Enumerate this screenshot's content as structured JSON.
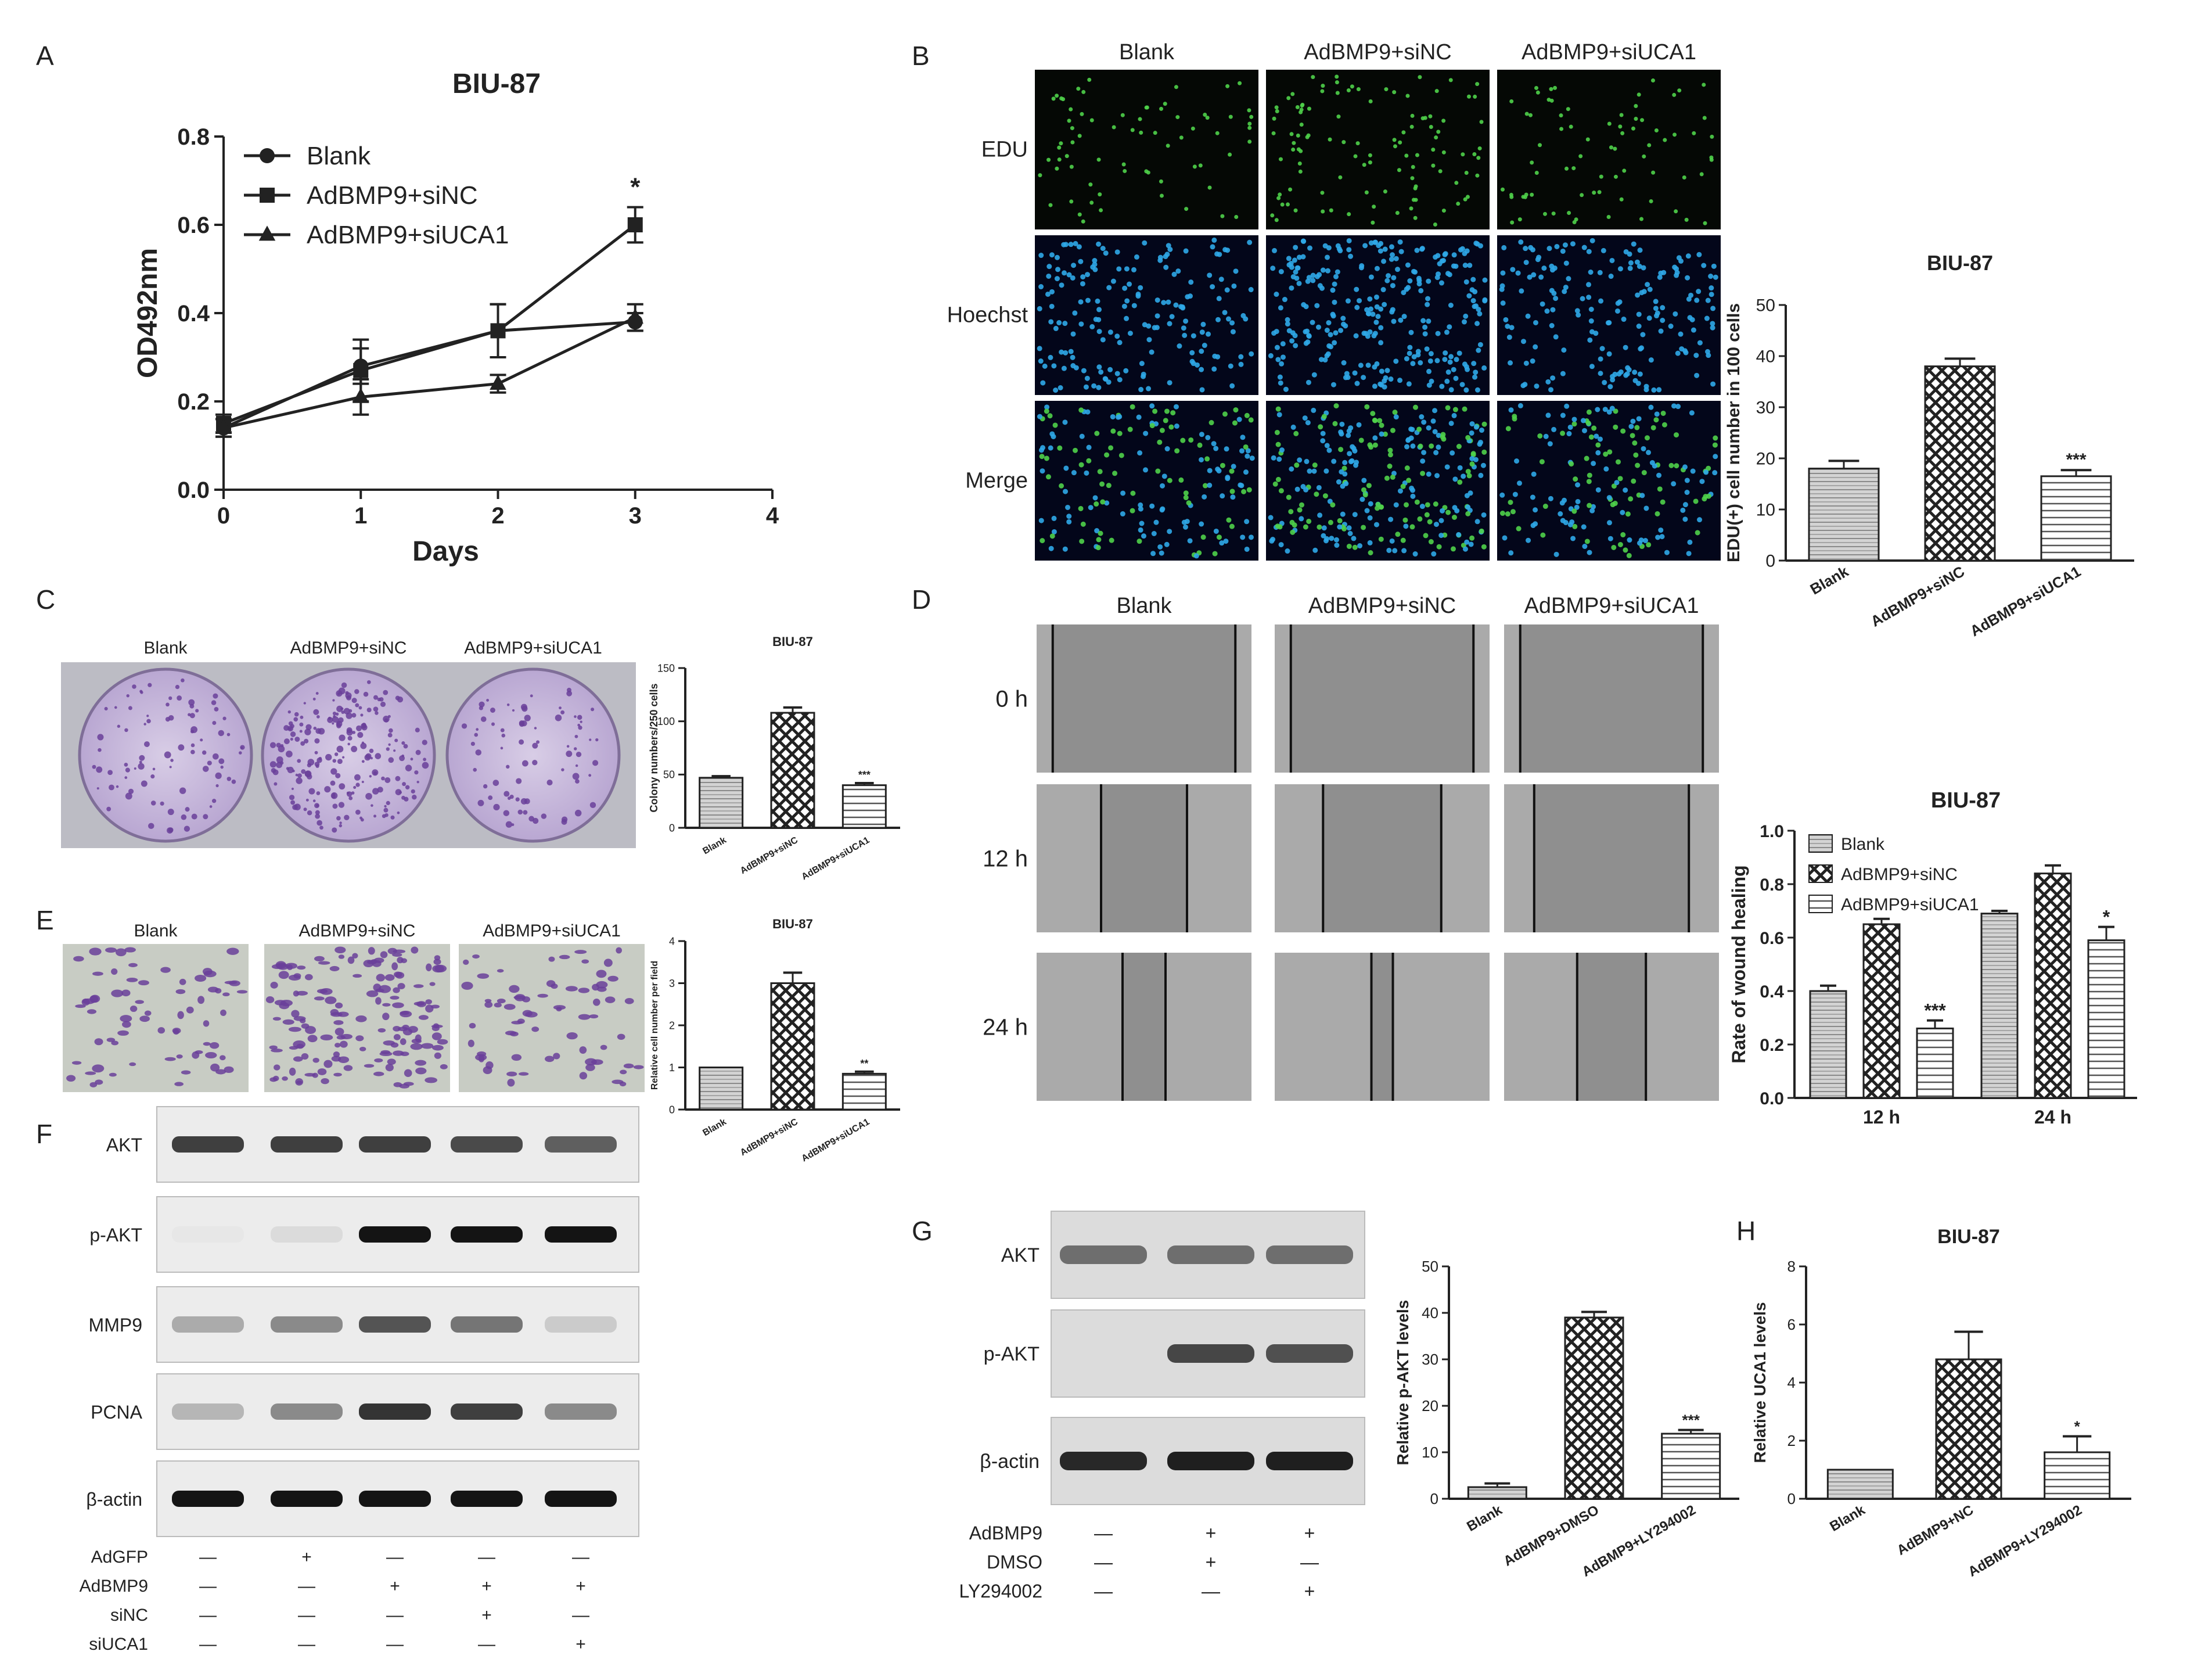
{
  "panels": {
    "A": {
      "label": "A",
      "chart_data": {
        "type": "line",
        "title": "BIU-87",
        "xlabel": "Days",
        "ylabel": "OD492nm",
        "xlim": [
          0,
          4
        ],
        "ylim": [
          0,
          0.8
        ],
        "x_ticks": [
          "0",
          "1",
          "2",
          "3",
          "4"
        ],
        "y_ticks": [
          "0.0",
          "0.2",
          "0.4",
          "0.6",
          "0.8"
        ],
        "x": [
          0,
          1,
          2,
          3
        ],
        "series": [
          {
            "name": "Blank",
            "marker": "circle",
            "values": [
              0.14,
              0.28,
              0.36,
              0.38
            ],
            "err": [
              0.02,
              0.04,
              0.06,
              0.02
            ]
          },
          {
            "name": "AdBMP9+siNC",
            "marker": "square",
            "values": [
              0.15,
              0.27,
              0.36,
              0.6
            ],
            "err": [
              0.02,
              0.07,
              0.06,
              0.04
            ]
          },
          {
            "name": "AdBMP9+siUCA1",
            "marker": "triangle",
            "values": [
              0.14,
              0.21,
              0.24,
              0.39
            ],
            "err": [
              0.02,
              0.04,
              0.02,
              0.03
            ]
          }
        ],
        "annotations": [
          {
            "x": 3,
            "text": "*"
          }
        ],
        "legend": "top-left"
      }
    },
    "B": {
      "label": "B",
      "columns": [
        "Blank",
        "AdBMP9+siNC",
        "AdBMP9+siUCA1"
      ],
      "rows": [
        "EDU",
        "Hoechst",
        "Merge"
      ],
      "chart_data": {
        "type": "bar",
        "title": "BIU-87",
        "ylabel": "EDU(+) cell number in 100 cells",
        "ylim": [
          0,
          50
        ],
        "y_ticks": [
          "0",
          "10",
          "20",
          "30",
          "40",
          "50"
        ],
        "categories": [
          "Blank",
          "AdBMP9+siNC",
          "AdBMP9+siUCA1"
        ],
        "values": [
          18,
          38,
          16.5
        ],
        "err": [
          1.5,
          1.5,
          1.2
        ],
        "sig": [
          "",
          "",
          "***"
        ]
      }
    },
    "C": {
      "label": "C",
      "columns": [
        "Blank",
        "AdBMP9+siNC",
        "AdBMP9+siUCA1"
      ],
      "chart_data": {
        "type": "bar",
        "title": "BIU-87",
        "ylabel": "Colony numbers/250 cells",
        "ylim": [
          0,
          150
        ],
        "y_ticks": [
          "0",
          "50",
          "100",
          "150"
        ],
        "categories": [
          "Blank",
          "AdBMP9+siNC",
          "AdBMP9+siUCA1"
        ],
        "values": [
          47,
          108,
          40
        ],
        "err": [
          1.5,
          5,
          2
        ],
        "sig": [
          "",
          "",
          "***"
        ]
      }
    },
    "D": {
      "label": "D",
      "columns": [
        "Blank",
        "AdBMP9+siNC",
        "AdBMP9+siUCA1"
      ],
      "rows": [
        "0 h",
        "12 h",
        "24 h"
      ],
      "chart_data": {
        "type": "bar",
        "title": "BIU-87",
        "ylabel": "Rate of wound healing",
        "ylim": [
          0,
          1.0
        ],
        "y_ticks": [
          "0.0",
          "0.2",
          "0.4",
          "0.6",
          "0.8",
          "1.0"
        ],
        "categories": [
          "12 h",
          "24 h"
        ],
        "series": [
          {
            "name": "Blank",
            "values": [
              0.4,
              0.69
            ],
            "err": [
              0.02,
              0.01
            ]
          },
          {
            "name": "AdBMP9+siNC",
            "values": [
              0.65,
              0.84
            ],
            "err": [
              0.02,
              0.03
            ]
          },
          {
            "name": "AdBMP9+siUCA1",
            "values": [
              0.26,
              0.59
            ],
            "err": [
              0.03,
              0.05
            ]
          }
        ],
        "sig": [
          [
            "",
            "",
            "***"
          ],
          [
            "",
            "",
            "*"
          ]
        ],
        "legend": "top-left"
      }
    },
    "E": {
      "label": "E",
      "columns": [
        "Blank",
        "AdBMP9+siNC",
        "AdBMP9+siUCA1"
      ],
      "chart_data": {
        "type": "bar",
        "title": "BIU-87",
        "ylabel": "Relative cell number per field",
        "ylim": [
          0,
          4
        ],
        "y_ticks": [
          "0",
          "1",
          "2",
          "3",
          "4"
        ],
        "categories": [
          "Blank",
          "AdBMP9+siNC",
          "AdBMP9+siUCA1"
        ],
        "values": [
          1.0,
          3.0,
          0.85
        ],
        "err": [
          0,
          0.25,
          0.05
        ],
        "sig": [
          "",
          "",
          "**"
        ]
      }
    },
    "F": {
      "label": "F",
      "rows": [
        "AKT",
        "p-AKT",
        "MMP9",
        "PCNA",
        "β-actin"
      ],
      "treatments": [
        {
          "name": "AdGFP",
          "values": [
            "—",
            "+",
            "—",
            "—",
            "—"
          ]
        },
        {
          "name": "AdBMP9",
          "values": [
            "—",
            "—",
            "+",
            "+",
            "+"
          ]
        },
        {
          "name": "siNC",
          "values": [
            "—",
            "—",
            "—",
            "+",
            "—"
          ]
        },
        {
          "name": "siUCA1",
          "values": [
            "—",
            "—",
            "—",
            "—",
            "+"
          ]
        }
      ]
    },
    "G": {
      "label": "G",
      "rows": [
        "AKT",
        "p-AKT",
        "β-actin"
      ],
      "treatments": [
        {
          "name": "AdBMP9",
          "values": [
            "—",
            "+",
            "+"
          ]
        },
        {
          "name": "DMSO",
          "values": [
            "—",
            "+",
            "—"
          ]
        },
        {
          "name": "LY294002",
          "values": [
            "—",
            "—",
            "+"
          ]
        }
      ],
      "chart_data": {
        "type": "bar",
        "title": "",
        "ylabel": "Relative p-AKT levels",
        "ylim": [
          0,
          50
        ],
        "y_ticks": [
          "0",
          "10",
          "20",
          "30",
          "40",
          "50"
        ],
        "categories": [
          "Blank",
          "AdBMP9+DMSO",
          "AdBMP9+LY294002"
        ],
        "values": [
          2.5,
          39,
          14
        ],
        "err": [
          0.8,
          1.2,
          0.8
        ],
        "sig": [
          "",
          "",
          "***"
        ]
      }
    },
    "H": {
      "label": "H",
      "chart_data": {
        "type": "bar",
        "title": "BIU-87",
        "ylabel": "Relative UCA1 levels",
        "ylim": [
          0,
          8
        ],
        "y_ticks": [
          "0",
          "2",
          "4",
          "6",
          "8"
        ],
        "categories": [
          "Blank",
          "AdBMP9+NC",
          "AdBMP9+LY294002"
        ],
        "values": [
          1.0,
          4.8,
          1.6
        ],
        "err": [
          0,
          0.95,
          0.55
        ],
        "sig": [
          "",
          "",
          "*"
        ]
      }
    }
  },
  "colors": {
    "edu_green": "#4fd14a",
    "hoechst_blue": "#2fa8e8",
    "crystal_violet": "#6a3f9a",
    "blot_band": "#141414",
    "blot_bg": "#ececec",
    "micro_gray": "#9a9a9a"
  }
}
